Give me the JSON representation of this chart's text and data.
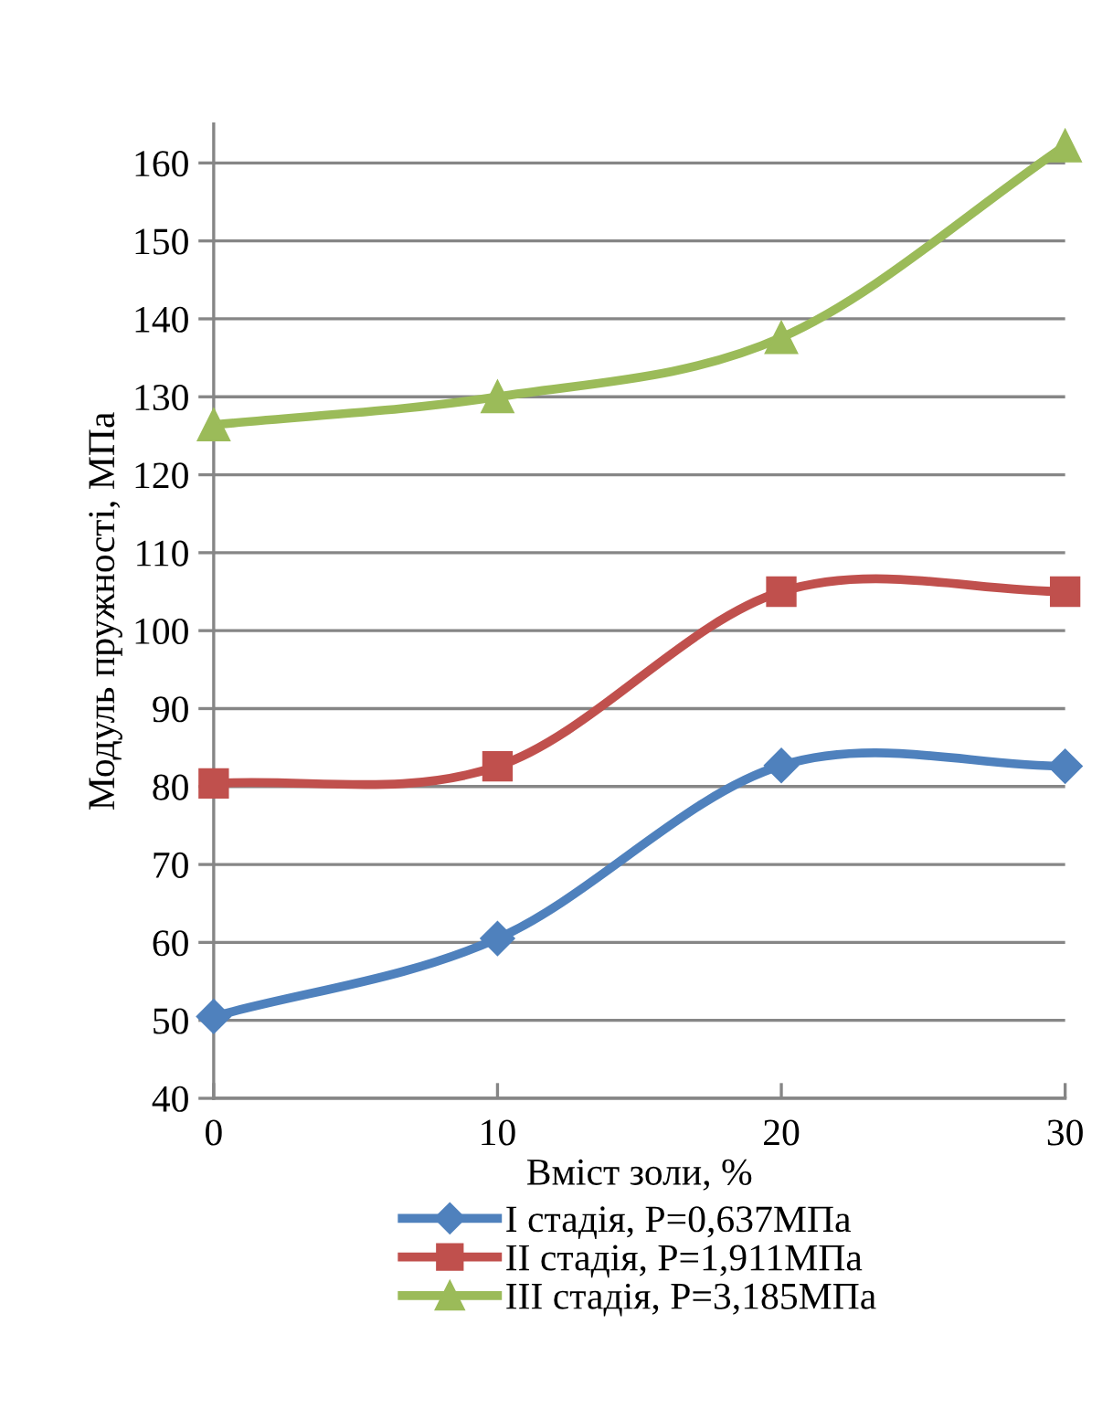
{
  "chart_data": {
    "type": "line",
    "xlabel": "Вміст золи, %",
    "ylabel": "Модуль пружності, МПа",
    "x": [
      0,
      10,
      20,
      30
    ],
    "series": [
      {
        "name": "I стадія, P=0,637МПа",
        "color": "#4f81bd",
        "marker": "diamond",
        "values": [
          50.5,
          60.5,
          82.7,
          82.6
        ]
      },
      {
        "name": "II стадія, P=1,911МПа",
        "color": "#c0504d",
        "marker": "square",
        "values": [
          80.4,
          82.6,
          105,
          105
        ]
      },
      {
        "name": "III стадія, P=3,185МПа",
        "color": "#9bbb59",
        "marker": "triangle",
        "values": [
          126.4,
          130,
          137.6,
          162.2
        ]
      }
    ],
    "xlim": [
      0,
      30
    ],
    "xticks": [
      0,
      10,
      20,
      30
    ],
    "ylim": [
      40,
      165
    ],
    "yticks": [
      40,
      50,
      60,
      70,
      80,
      90,
      100,
      110,
      120,
      130,
      140,
      150,
      160
    ],
    "grid": "y",
    "legend": "bottom",
    "line_style": "solid"
  }
}
